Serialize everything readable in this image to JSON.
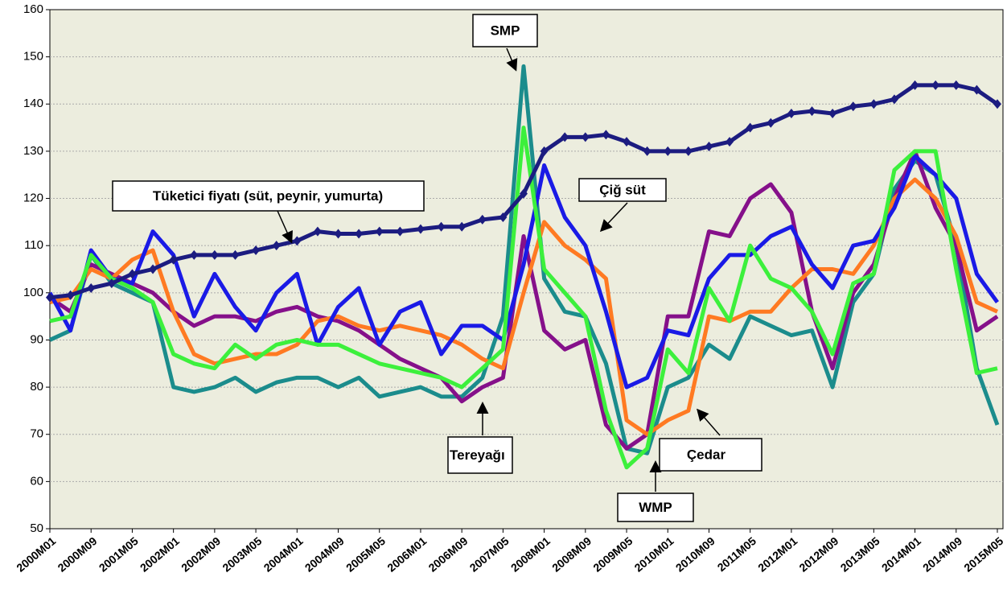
{
  "chart_data": {
    "type": "line",
    "categories": [
      "2000M01",
      null,
      "2000M09",
      null,
      "2001M05",
      null,
      "2002M01",
      null,
      "2002M09",
      null,
      "2003M05",
      null,
      "2004M01",
      null,
      "2004M09",
      null,
      "2005M05",
      null,
      "2006M01",
      null,
      "2006M09",
      null,
      "2007M05",
      null,
      "2008M01",
      null,
      "2008M09",
      null,
      "2009M05",
      null,
      "2010M01",
      null,
      "2010M09",
      null,
      "2011M05",
      null,
      "2012M01",
      null,
      "2012M09",
      null,
      "2013M05",
      null,
      "2014M01",
      null,
      "2014M09",
      null,
      "2015M05"
    ],
    "series": [
      {
        "name": "SMP",
        "color": "#1b8c8c",
        "values": [
          90,
          92,
          108,
          102,
          100,
          98,
          80,
          79,
          80,
          82,
          79,
          81,
          82,
          82,
          80,
          82,
          78,
          79,
          80,
          78,
          78,
          82,
          95,
          148,
          103,
          96,
          95,
          85,
          67,
          66,
          80,
          82,
          89,
          86,
          95,
          93,
          91,
          92,
          80,
          98,
          104,
          122,
          128,
          125,
          110,
          84,
          72
        ]
      },
      {
        "name": "Tereyağı",
        "color": "#85108a",
        "values": [
          99,
          96,
          106,
          104,
          102,
          100,
          96,
          93,
          95,
          95,
          94,
          96,
          97,
          95,
          94,
          92,
          89,
          86,
          84,
          82,
          77,
          80,
          82,
          112,
          92,
          88,
          90,
          72,
          67,
          70,
          95,
          95,
          113,
          112,
          120,
          123,
          117,
          96,
          84,
          100,
          106,
          120,
          130,
          118,
          110,
          92,
          95
        ]
      },
      {
        "name": "Çedar",
        "color": "#ff7a22",
        "values": [
          98,
          99,
          105,
          103,
          107,
          109,
          96,
          87,
          85,
          86,
          87,
          87,
          89,
          94,
          95,
          93,
          92,
          93,
          92,
          91,
          89,
          86,
          84,
          100,
          115,
          110,
          107,
          103,
          73,
          70,
          73,
          75,
          95,
          94,
          96,
          96,
          101,
          105,
          105,
          104,
          110,
          120,
          124,
          120,
          112,
          98,
          96
        ]
      },
      {
        "name": "Çiğ süt",
        "color": "#1a1ae6",
        "values": [
          100,
          92,
          109,
          103,
          102,
          113,
          108,
          95,
          104,
          97,
          92,
          100,
          104,
          89,
          97,
          101,
          89,
          96,
          98,
          87,
          93,
          93,
          90,
          106,
          127,
          116,
          110,
          96,
          80,
          82,
          92,
          91,
          103,
          108,
          108,
          112,
          114,
          106,
          101,
          110,
          111,
          118,
          129,
          125,
          120,
          104,
          98
        ]
      },
      {
        "name": "WMP",
        "color": "#3cf03c",
        "values": [
          94,
          95,
          108,
          103,
          101,
          98,
          87,
          85,
          84,
          89,
          86,
          89,
          90,
          89,
          89,
          87,
          85,
          84,
          83,
          82,
          80,
          84,
          88,
          135,
          105,
          100,
          95,
          75,
          63,
          67,
          88,
          83,
          101,
          94,
          110,
          103,
          101,
          96,
          87,
          102,
          104,
          126,
          130,
          130,
          105,
          83,
          84
        ]
      },
      {
        "name": "Tüketici fiyatı (süt, peynir, yumurta)",
        "color": "#1c1c80",
        "values": [
          99,
          99.5,
          101,
          102,
          104,
          105,
          107,
          108,
          108,
          108,
          109,
          110,
          111,
          113,
          112.5,
          112.5,
          113,
          113,
          113.5,
          114,
          114,
          115.5,
          116,
          121,
          130,
          133,
          133,
          133.5,
          132,
          130,
          130,
          130,
          131,
          132,
          135,
          136,
          138,
          138.5,
          138,
          139.5,
          140,
          141,
          144,
          144,
          144,
          143,
          140
        ]
      }
    ],
    "ylim": [
      50,
      160
    ],
    "yticks": [
      50,
      60,
      70,
      80,
      90,
      100,
      110,
      120,
      130,
      140,
      150,
      160
    ],
    "grid": true,
    "annotations": [
      {
        "text": "SMP"
      },
      {
        "text": "Tüketici fiyatı (süt, peynir, yumurta)"
      },
      {
        "text": "Çiğ süt"
      },
      {
        "text": "Tereyağı"
      },
      {
        "text": "Çedar"
      },
      {
        "text": "WMP"
      }
    ]
  }
}
